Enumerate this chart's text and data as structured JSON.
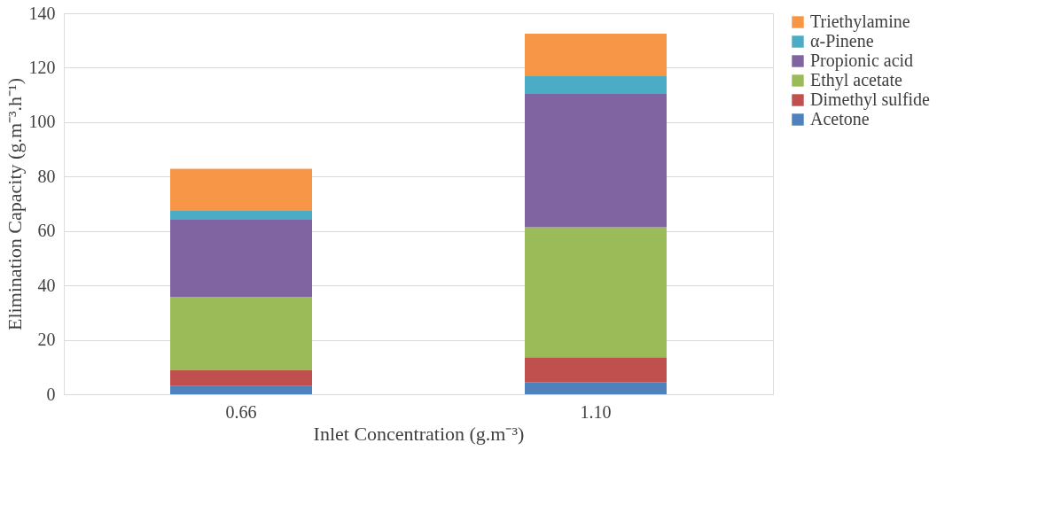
{
  "chart_data": {
    "type": "bar",
    "stacked": true,
    "xlabel": "Inlet Concentration (g.m⁻³)",
    "ylabel": "Elimination Capacity (g.m⁻³.h⁻¹)",
    "categories": [
      "0.66",
      "1.10"
    ],
    "series": [
      {
        "name": "Acetone",
        "color": "#4f81bd",
        "values": [
          3,
          4.5
        ]
      },
      {
        "name": "Dimethyl sulfide",
        "color": "#c0504d",
        "values": [
          5.8,
          9.1
        ]
      },
      {
        "name": "Ethyl acetate",
        "color": "#9bbb59",
        "values": [
          27,
          47.8
        ]
      },
      {
        "name": "Propionic acid",
        "color": "#8064a2",
        "values": [
          28.3,
          49
        ]
      },
      {
        "name": "α-Pinene",
        "color": "#4bacc6",
        "values": [
          3.3,
          6.5
        ]
      },
      {
        "name": "Triethylamine",
        "color": "#f79646",
        "values": [
          15.5,
          15.6
        ]
      }
    ],
    "ylim": [
      0,
      140
    ],
    "yticks": [
      0,
      20,
      40,
      60,
      80,
      100,
      120,
      140
    ],
    "grid": "y",
    "legend": "right"
  }
}
